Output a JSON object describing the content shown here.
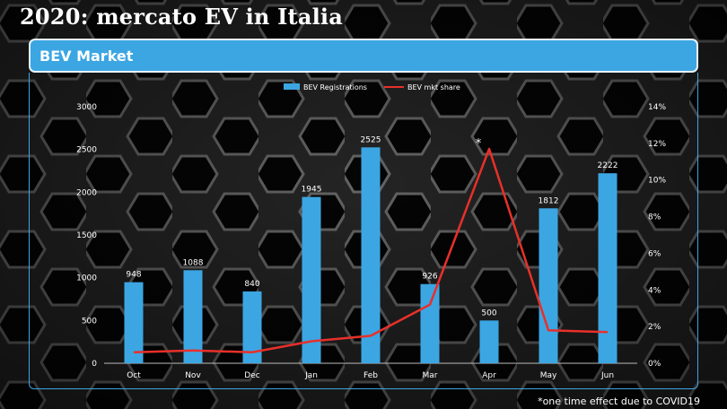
{
  "slide": {
    "title": "2020: mercato EV in Italia",
    "header": "BEV Market",
    "footnote": "*one time effect due to COVID19"
  },
  "colors": {
    "bar": "#3ca6e3",
    "line": "#e8302a",
    "header": "#3ca6e3",
    "text": "#ffffff"
  },
  "chart_data": {
    "type": "bar",
    "title": "",
    "categories": [
      "Oct",
      "Nov",
      "Dec",
      "Jan",
      "Feb",
      "Mar",
      "Apr",
      "May",
      "Jun"
    ],
    "series": [
      {
        "name": "BEV Registrations",
        "type": "bar",
        "axis": "left",
        "values": [
          948,
          1088,
          840,
          1945,
          2525,
          926,
          500,
          1812,
          2222
        ],
        "data_labels": [
          "948",
          "1088",
          "840",
          "1945",
          "2525",
          "926",
          "500",
          "1812",
          "2222"
        ]
      },
      {
        "name": "BEV mkt share",
        "type": "line",
        "axis": "right",
        "values": [
          0.6,
          0.7,
          0.6,
          1.2,
          1.5,
          3.2,
          11.7,
          1.8,
          1.7
        ]
      }
    ],
    "y_left": {
      "ylim": [
        0,
        3000
      ],
      "ticks": [
        "0",
        "500",
        "1000",
        "1500",
        "2000",
        "2500",
        "3000"
      ]
    },
    "y_right": {
      "ylim": [
        0,
        14
      ],
      "ticks": [
        "0%",
        "2%",
        "4%",
        "6%",
        "8%",
        "10%",
        "12%",
        "14%"
      ]
    },
    "annotation": {
      "text": "*",
      "category": "Apr"
    },
    "legend": {
      "position": "top-center"
    },
    "grid": false
  }
}
